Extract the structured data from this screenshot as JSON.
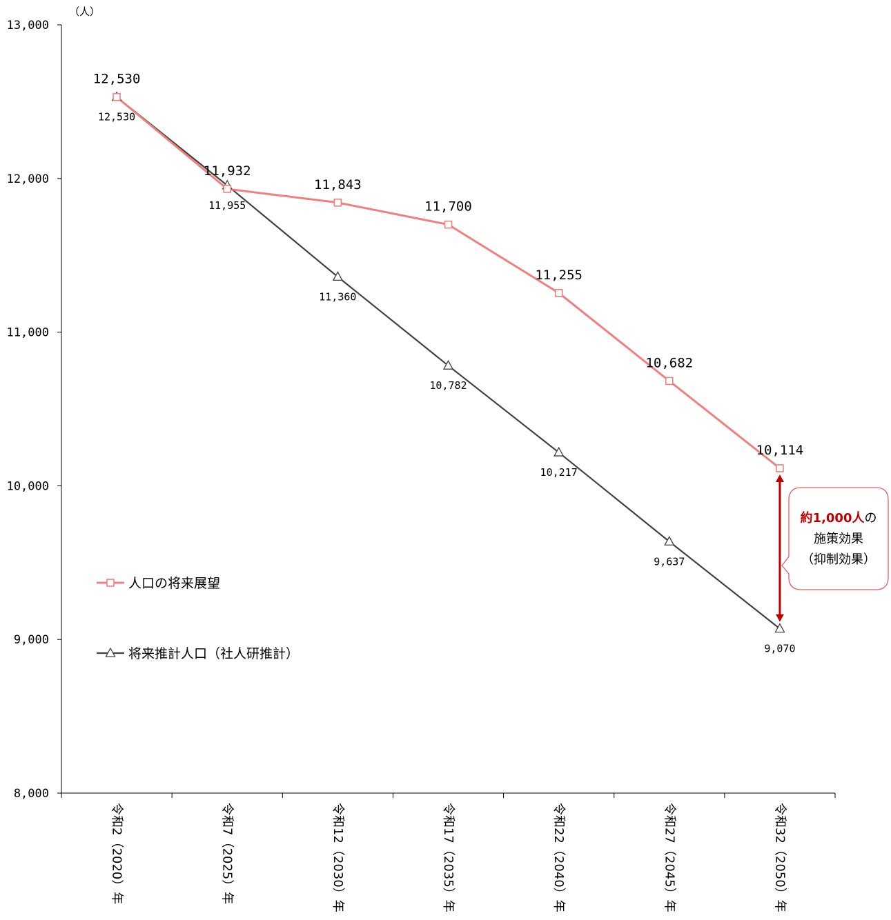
{
  "chart_data": {
    "type": "line",
    "unit_label": "（人）",
    "categories": [
      "令和2（2020）年",
      "令和7（2025）年",
      "令和12（2030）年",
      "令和17（2035）年",
      "令和22（2040）年",
      "令和27（2045）年",
      "令和32（2050）年"
    ],
    "y_ticks": [
      "8,000",
      "9,000",
      "10,000",
      "11,000",
      "12,000",
      "13,000"
    ],
    "ylim": [
      8000,
      13000
    ],
    "grid": false,
    "legend_position": "left",
    "series": [
      {
        "name": "人口の将来展望",
        "marker": "square",
        "color": "#f08080",
        "values": [
          12530,
          11932,
          11843,
          11700,
          11255,
          10682,
          10114
        ],
        "labels": [
          "12,530",
          "11,932",
          "11,843",
          "11,700",
          "11,255",
          "10,682",
          "10,114"
        ]
      },
      {
        "name": "将来推計人口（社人研推計）",
        "marker": "triangle",
        "color": "#404040",
        "values": [
          12530,
          11955,
          11360,
          10782,
          10217,
          9637,
          9070
        ],
        "labels": [
          "12,530",
          "11,955",
          "11,360",
          "10,782",
          "10,217",
          "9,637",
          "9,070"
        ]
      }
    ],
    "annotation": {
      "highlight": "約1,000人",
      "suffix": "の",
      "line2": "施策効果",
      "line3": "（抑制効果）",
      "arrow_color": "#c00000",
      "box_border_color": "#e06060"
    }
  }
}
